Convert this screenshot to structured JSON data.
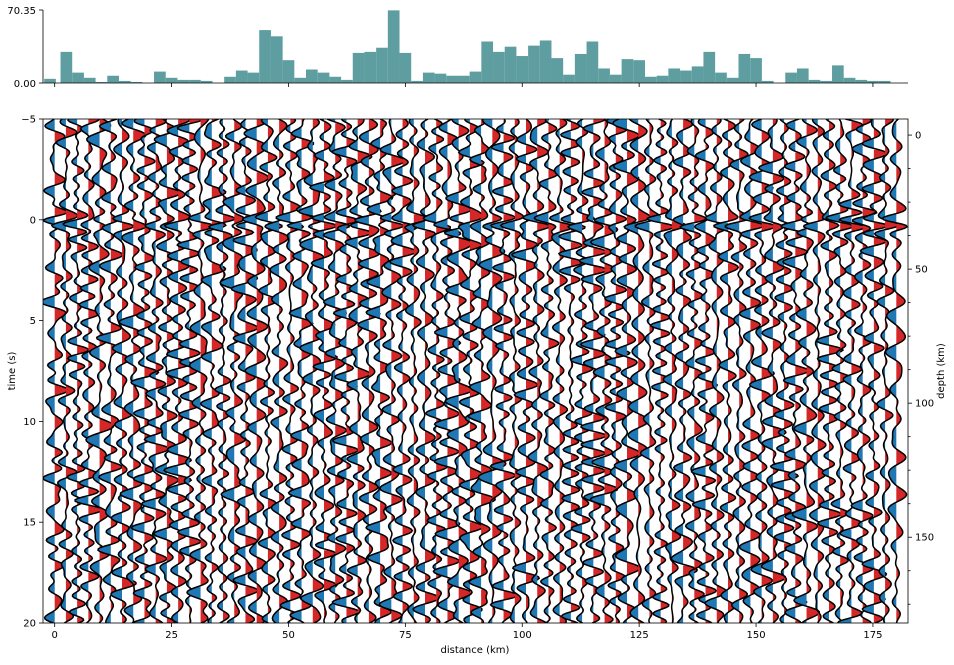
{
  "chart_data": [
    {
      "type": "bar",
      "panel": "top-histogram",
      "color": "#5f9ea0",
      "ylim": [
        0.0,
        70.35
      ],
      "ytick_labels": [
        "0.00",
        "70.35"
      ],
      "bin_centers": [
        -1.0,
        2.5,
        5.0,
        7.5,
        10.0,
        12.5,
        15.0,
        17.5,
        20.0,
        22.5,
        25.0,
        27.5,
        30.0,
        32.5,
        35.0,
        37.5,
        40.0,
        42.5,
        45.0,
        47.5,
        50.0,
        52.5,
        55.0,
        57.5,
        60.0,
        62.5,
        65.0,
        67.5,
        70.0,
        72.5,
        75.0,
        77.5,
        80.0,
        82.5,
        85.0,
        87.5,
        90.0,
        92.5,
        95.0,
        97.5,
        100.0,
        102.5,
        105.0,
        107.5,
        110.0,
        112.5,
        115.0,
        117.5,
        120.0,
        122.5,
        125.0,
        127.5,
        130.0,
        132.5,
        135.0,
        137.5,
        140.0,
        142.5,
        145.0,
        147.5,
        150.0,
        152.5,
        155.0,
        157.5,
        160.0,
        162.5,
        165.0,
        167.5,
        170.0,
        172.5,
        175.0,
        177.5
      ],
      "values": [
        4,
        30,
        10,
        5,
        1,
        7,
        2,
        1,
        0,
        11,
        5,
        3,
        3,
        2,
        0,
        6,
        12,
        10,
        51,
        45,
        22,
        5,
        13,
        10,
        6,
        3,
        29,
        30,
        34,
        70,
        29,
        2,
        10,
        9,
        7,
        7,
        11,
        40,
        30,
        35,
        26,
        36,
        41,
        24,
        8,
        28,
        40,
        14,
        8,
        23,
        22,
        6,
        7,
        14,
        12,
        16,
        30,
        10,
        5,
        28,
        24,
        2,
        0,
        10,
        14,
        3,
        2,
        17,
        5,
        3,
        2,
        2
      ]
    },
    {
      "type": "line",
      "panel": "seismic-record-section",
      "xlabel": "distance (km)",
      "ylabel": "time (s)",
      "ylabel_right": "depth (km)",
      "xlim": [
        -2.5,
        182.5
      ],
      "ylim": [
        20,
        -5
      ],
      "xticks": [
        0,
        25,
        50,
        75,
        100,
        125,
        150,
        175
      ],
      "yticks": [
        -5,
        0,
        5,
        10,
        15,
        20
      ],
      "right_ylim": [
        182,
        -6
      ],
      "right_yticks": [
        0,
        50,
        100,
        150
      ],
      "positive_fill": "#d62728",
      "negative_fill": "#1f77b4",
      "trace_color": "#000000",
      "trace_count": 76,
      "trace_spacing_km": 2.4,
      "first_trace_km": 0.0,
      "amplitude_km": 2.4,
      "first_arrival_s": 0.2,
      "seed": 20240611
    }
  ]
}
